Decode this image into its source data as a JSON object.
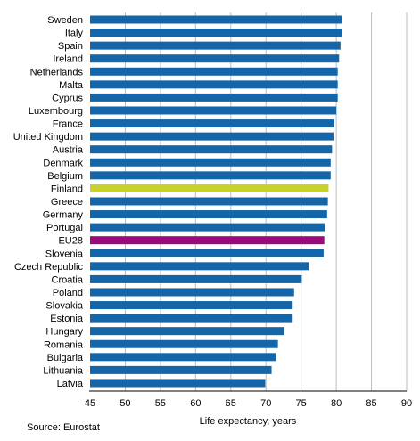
{
  "chart_data": {
    "type": "bar",
    "orientation": "horizontal",
    "categories": [
      "Sweden",
      "Italy",
      "Spain",
      "Ireland",
      "Netherlands",
      "Malta",
      "Cyprus",
      "Luxembourg",
      "France",
      "United Kingdom",
      "Austria",
      "Denmark",
      "Belgium",
      "Finland",
      "Greece",
      "Germany",
      "Portugal",
      "EU28",
      "Slovenia",
      "Czech Republic",
      "Croatia",
      "Poland",
      "Slovakia",
      "Estonia",
      "Hungary",
      "Romania",
      "Bulgaria",
      "Lithuania",
      "Latvia"
    ],
    "values": [
      80.8,
      80.8,
      80.6,
      80.4,
      80.2,
      80.2,
      80.2,
      80.0,
      79.7,
      79.6,
      79.4,
      79.2,
      79.2,
      78.9,
      78.8,
      78.7,
      78.4,
      78.3,
      78.2,
      76.1,
      75.1,
      74.0,
      73.8,
      73.8,
      72.6,
      71.7,
      71.4,
      70.8,
      69.9
    ],
    "highlight": {
      "Finland": "#c8d22e",
      "EU28": "#9b0a7d"
    },
    "bar_color": "#1466a9",
    "xlim": [
      45,
      90
    ],
    "xticks": [
      45,
      50,
      55,
      60,
      65,
      70,
      75,
      80,
      85,
      90
    ],
    "xlabel": "Life expectancy, years",
    "ylabel": "",
    "grid": "vertical",
    "legend": "none"
  },
  "note": "Source: Eurostat"
}
